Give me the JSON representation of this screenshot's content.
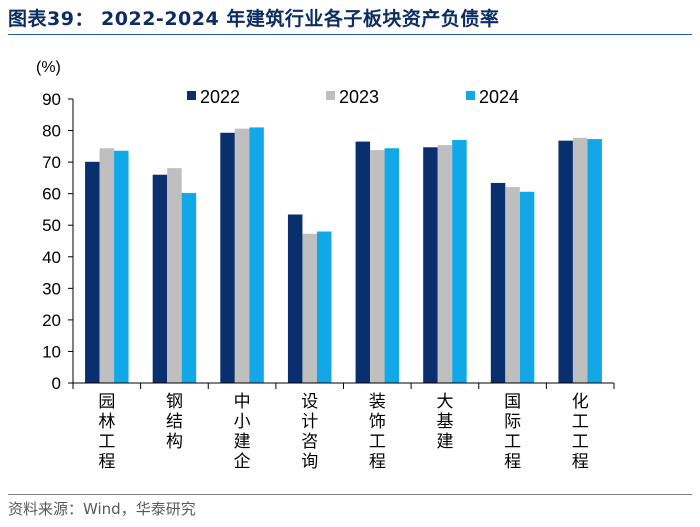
{
  "header": {
    "title": "图表39： 2022-2024 年建筑行业各子板块资产负债率"
  },
  "footer": {
    "source": "资料来源：Wind，华泰研究"
  },
  "colors": {
    "s2022": "#0a2f6e",
    "s2023": "#bfbfbf",
    "s2024": "#12a8e8",
    "title": "#0c2d63"
  },
  "chart_data": {
    "type": "bar",
    "title": "2022-2024 年建筑行业各子板块资产负债率",
    "ylabel": "(%)",
    "xlabel": "",
    "ylim": [
      0,
      90
    ],
    "yticks": [
      0,
      10,
      20,
      30,
      40,
      50,
      60,
      70,
      80,
      90
    ],
    "grid": false,
    "legend_position": "top",
    "categories": [
      "园林工程",
      "钢结构",
      "中小建企",
      "设计咨询",
      "装饰工程",
      "大基建",
      "国际工程",
      "化工工程"
    ],
    "series": [
      {
        "name": "2022",
        "values": [
          70.1,
          66.0,
          79.3,
          53.4,
          76.5,
          74.7,
          63.4,
          76.8
        ]
      },
      {
        "name": "2023",
        "values": [
          74.4,
          68.1,
          80.6,
          47.3,
          73.8,
          75.4,
          62.1,
          77.7
        ]
      },
      {
        "name": "2024",
        "values": [
          73.6,
          60.2,
          81.0,
          48.0,
          74.4,
          77.0,
          60.6,
          77.3
        ]
      }
    ]
  }
}
